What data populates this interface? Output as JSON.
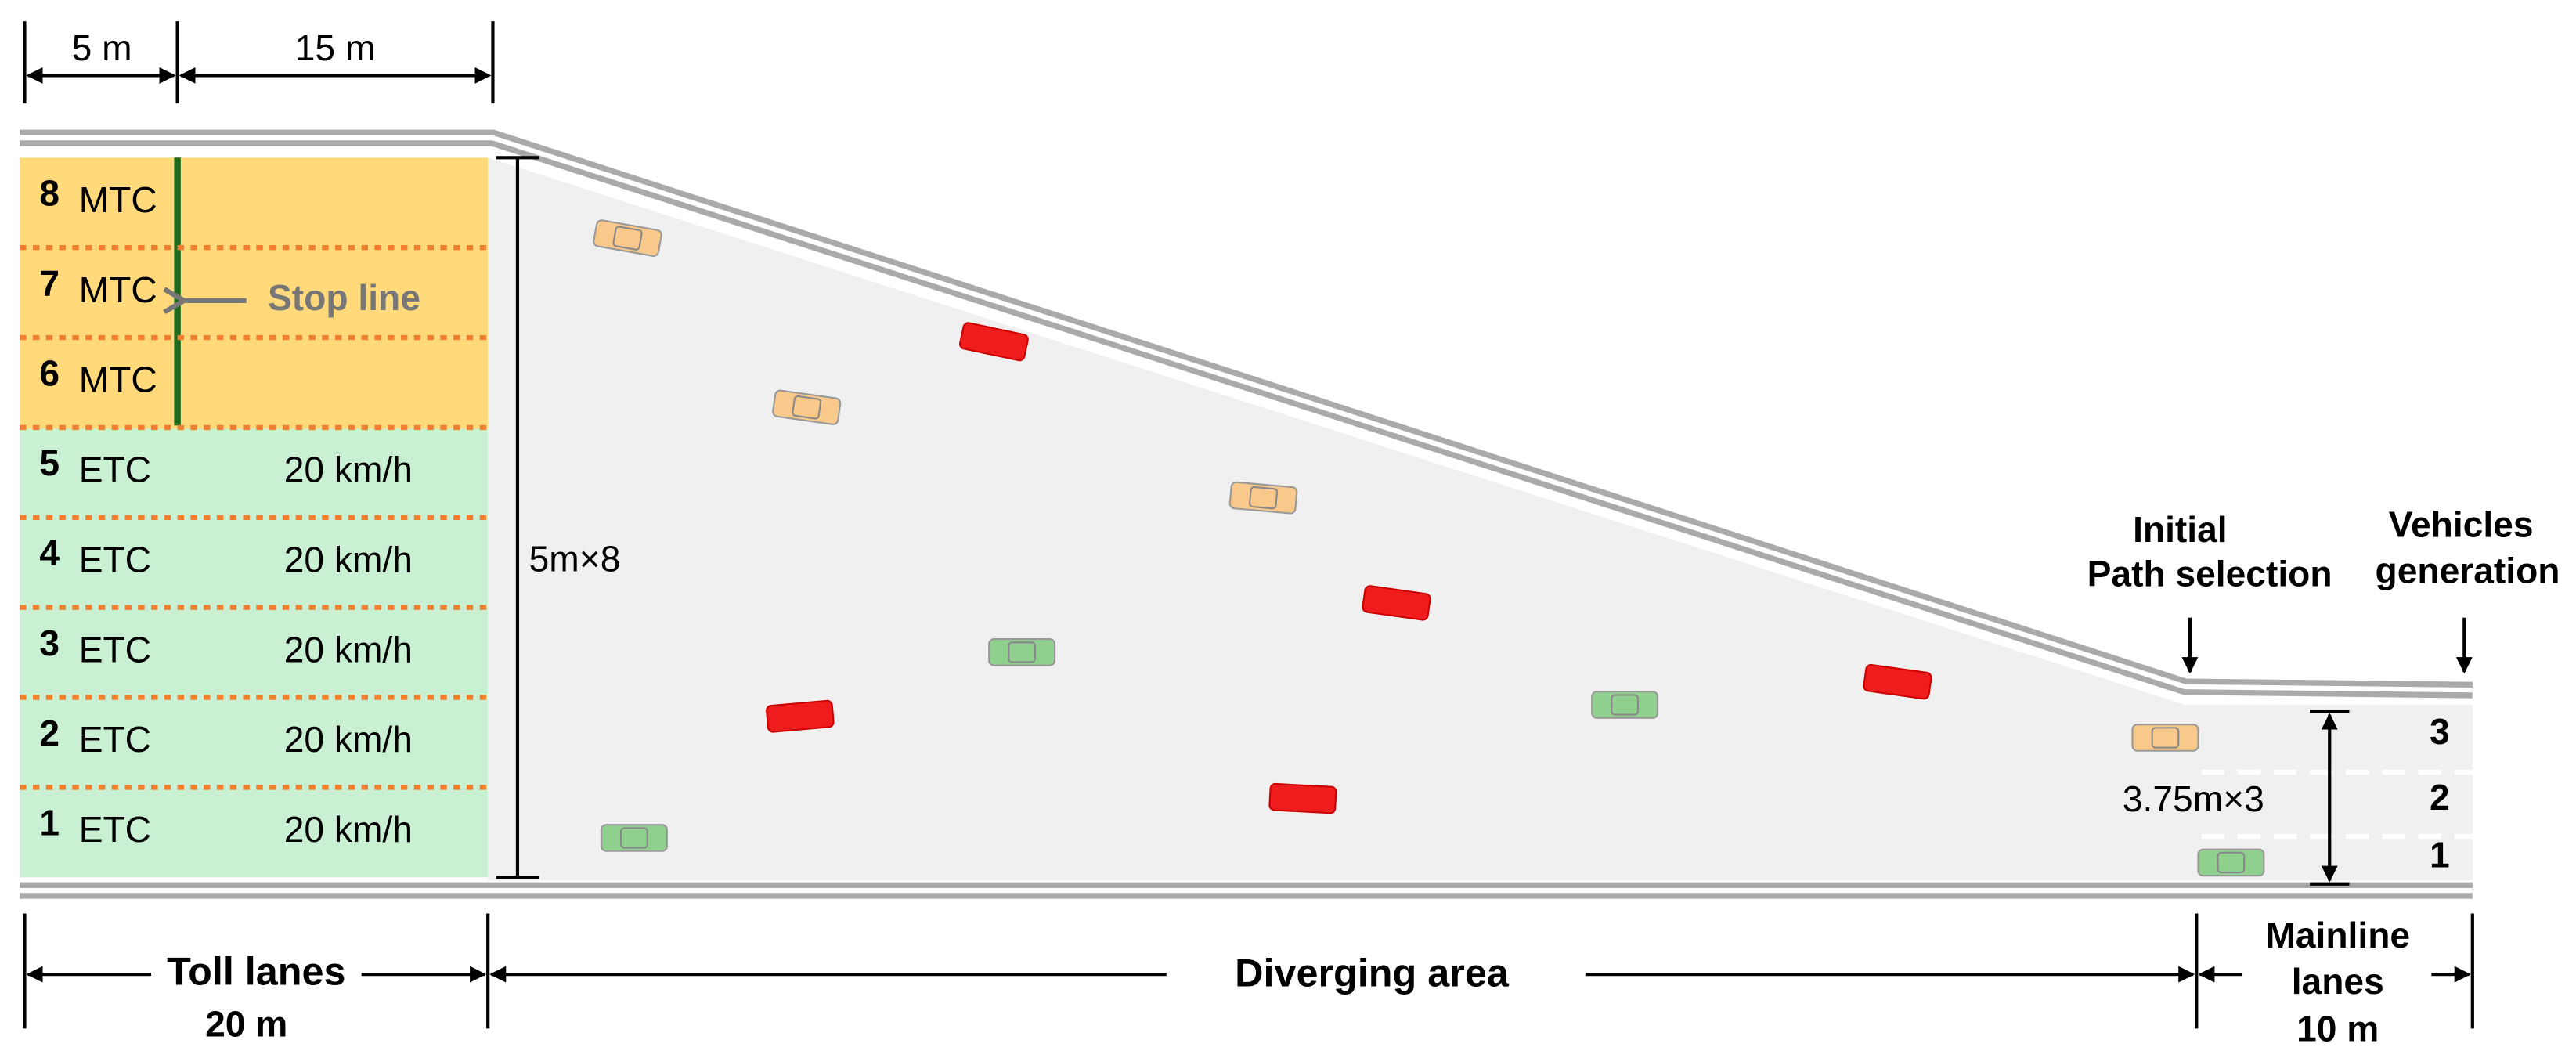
{
  "top_dimensions": [
    "5 m",
    "15 m"
  ],
  "toll_lanes": [
    {
      "number": "8",
      "type": "MTC"
    },
    {
      "number": "7",
      "type": "MTC"
    },
    {
      "number": "6",
      "type": "MTC"
    },
    {
      "number": "5",
      "type": "ETC",
      "speed": "20 km/h"
    },
    {
      "number": "4",
      "type": "ETC",
      "speed": "20 km/h"
    },
    {
      "number": "3",
      "type": "ETC",
      "speed": "20 km/h"
    },
    {
      "number": "2",
      "type": "ETC",
      "speed": "20 km/h"
    },
    {
      "number": "1",
      "type": "ETC",
      "speed": "20 km/h"
    }
  ],
  "stop_line": "Stop line",
  "diverging_width": "5m×8",
  "mainline_width": "3.75m×3",
  "mainline_lanes": [
    "3",
    "2",
    "1"
  ],
  "initial_path_selection": [
    "Initial",
    "Path selection"
  ],
  "vehicles_generation": [
    "Vehicles",
    "generation"
  ],
  "bottom": {
    "toll_lanes": "Toll lanes",
    "toll_length": "20 m",
    "diverging_area": "Diverging area",
    "mainline_lanes": [
      "Mainline",
      "lanes"
    ],
    "mainline_length": "10 m"
  }
}
